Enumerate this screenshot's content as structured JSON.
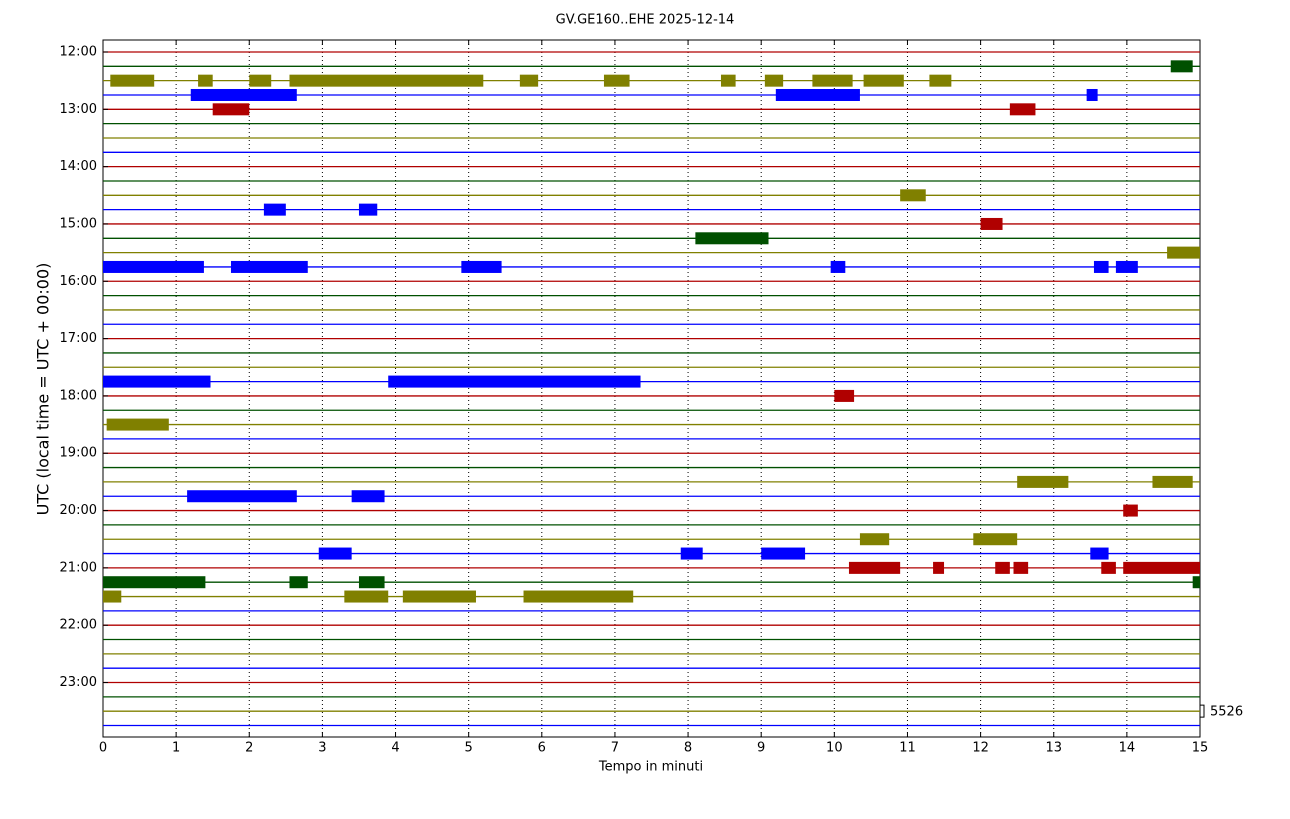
{
  "chart_data": {
    "type": "dayplot",
    "title": "GV.GE160..EHE 2025-12-14",
    "x_label": "Tempo in minuti",
    "y_label": "UTC (local time = UTC + 00:00)",
    "xlim": [
      0,
      15
    ],
    "xticks": [
      0,
      1,
      2,
      3,
      4,
      5,
      6,
      7,
      8,
      9,
      10,
      11,
      12,
      13,
      14,
      15
    ],
    "grid": true,
    "categories": [
      "12:00",
      null,
      null,
      null,
      "13:00",
      null,
      null,
      null,
      "14:00",
      null,
      null,
      null,
      "15:00",
      null,
      null,
      null,
      "16:00",
      null,
      null,
      null,
      "17:00",
      null,
      null,
      null,
      "18:00",
      null,
      null,
      null,
      "19:00",
      null,
      null,
      null,
      "20:00",
      null,
      null,
      null,
      "21:00",
      null,
      null,
      null,
      "22:00",
      null,
      null,
      null,
      "23:00",
      null,
      null,
      null
    ],
    "colors": [
      "#b00000",
      "#005000",
      "#808000",
      "#0000ff"
    ],
    "scale_label": "5526",
    "events": [
      {
        "trace": 1,
        "start": 14.6,
        "end": 14.9
      },
      {
        "trace": 2,
        "start": 0.1,
        "end": 0.7
      },
      {
        "trace": 2,
        "start": 1.3,
        "end": 1.5
      },
      {
        "trace": 2,
        "start": 2.0,
        "end": 2.3
      },
      {
        "trace": 2,
        "start": 2.55,
        "end": 5.2
      },
      {
        "trace": 2,
        "start": 5.7,
        "end": 5.95
      },
      {
        "trace": 2,
        "start": 6.85,
        "end": 7.2
      },
      {
        "trace": 2,
        "start": 8.45,
        "end": 8.65
      },
      {
        "trace": 2,
        "start": 9.05,
        "end": 9.3
      },
      {
        "trace": 2,
        "start": 9.7,
        "end": 10.25
      },
      {
        "trace": 2,
        "start": 10.4,
        "end": 10.95
      },
      {
        "trace": 2,
        "start": 11.3,
        "end": 11.6
      },
      {
        "trace": 3,
        "start": 1.2,
        "end": 2.65
      },
      {
        "trace": 3,
        "start": 9.2,
        "end": 10.35
      },
      {
        "trace": 3,
        "start": 13.45,
        "end": 13.6
      },
      {
        "trace": 4,
        "start": 1.5,
        "end": 2.0
      },
      {
        "trace": 4,
        "start": 12.4,
        "end": 12.75
      },
      {
        "trace": 10,
        "start": 10.9,
        "end": 11.25
      },
      {
        "trace": 11,
        "start": 2.2,
        "end": 2.5
      },
      {
        "trace": 11,
        "start": 3.5,
        "end": 3.75
      },
      {
        "trace": 12,
        "start": 12.0,
        "end": 12.3
      },
      {
        "trace": 13,
        "start": 8.1,
        "end": 9.1
      },
      {
        "trace": 14,
        "start": 14.55,
        "end": 15
      },
      {
        "trace": 15,
        "start": 0,
        "end": 1.38
      },
      {
        "trace": 15,
        "start": 1.75,
        "end": 2.8
      },
      {
        "trace": 15,
        "start": 4.9,
        "end": 5.45
      },
      {
        "trace": 15,
        "start": 9.95,
        "end": 10.15
      },
      {
        "trace": 15,
        "start": 13.55,
        "end": 13.75
      },
      {
        "trace": 15,
        "start": 13.85,
        "end": 14.15
      },
      {
        "trace": 23,
        "start": 0,
        "end": 1.47
      },
      {
        "trace": 23,
        "start": 3.9,
        "end": 7.35
      },
      {
        "trace": 24,
        "start": 10.0,
        "end": 10.27
      },
      {
        "trace": 26,
        "start": 0.05,
        "end": 0.9
      },
      {
        "trace": 30,
        "start": 12.5,
        "end": 13.2
      },
      {
        "trace": 30,
        "start": 14.35,
        "end": 14.9
      },
      {
        "trace": 31,
        "start": 1.15,
        "end": 2.65
      },
      {
        "trace": 31,
        "start": 3.4,
        "end": 3.85
      },
      {
        "trace": 32,
        "start": 13.95,
        "end": 14.15
      },
      {
        "trace": 34,
        "start": 10.35,
        "end": 10.75
      },
      {
        "trace": 34,
        "start": 11.9,
        "end": 12.5
      },
      {
        "trace": 35,
        "start": 2.95,
        "end": 3.4
      },
      {
        "trace": 35,
        "start": 7.9,
        "end": 8.2
      },
      {
        "trace": 35,
        "start": 9.0,
        "end": 9.6
      },
      {
        "trace": 35,
        "start": 13.5,
        "end": 13.75
      },
      {
        "trace": 36,
        "start": 10.2,
        "end": 10.9
      },
      {
        "trace": 36,
        "start": 11.35,
        "end": 11.5
      },
      {
        "trace": 36,
        "start": 12.2,
        "end": 12.4
      },
      {
        "trace": 36,
        "start": 12.45,
        "end": 12.65
      },
      {
        "trace": 36,
        "start": 13.65,
        "end": 13.85
      },
      {
        "trace": 36,
        "start": 13.95,
        "end": 15
      },
      {
        "trace": 37,
        "start": 0,
        "end": 1.4
      },
      {
        "trace": 37,
        "start": 2.55,
        "end": 2.8
      },
      {
        "trace": 37,
        "start": 3.5,
        "end": 3.85
      },
      {
        "trace": 37,
        "start": 14.9,
        "end": 15
      },
      {
        "trace": 38,
        "start": 0,
        "end": 0.25
      },
      {
        "trace": 38,
        "start": 3.3,
        "end": 3.9
      },
      {
        "trace": 38,
        "start": 4.1,
        "end": 5.1
      },
      {
        "trace": 38,
        "start": 5.75,
        "end": 7.25
      }
    ]
  }
}
